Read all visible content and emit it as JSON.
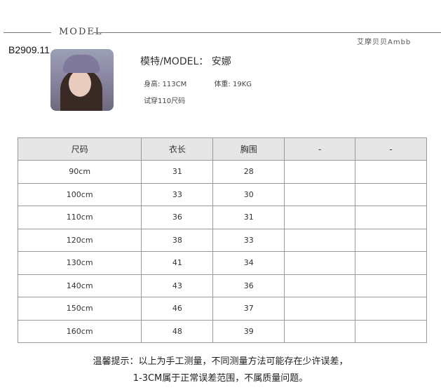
{
  "header": {
    "section_title": "MODEL",
    "brand": "艾摩贝贝Ambb",
    "product_code": "B2909.11"
  },
  "model": {
    "name_line": "模特/MODEL： 安娜",
    "height": "身高: 113CM",
    "weight": "体重: 19KG",
    "tried_size": "试穿110尺码"
  },
  "table": {
    "headers": [
      "尺码",
      "衣长",
      "胸围",
      "-",
      "-"
    ],
    "rows": [
      [
        "90cm",
        "31",
        "28",
        "",
        ""
      ],
      [
        "100cm",
        "33",
        "30",
        "",
        ""
      ],
      [
        "110cm",
        "36",
        "31",
        "",
        ""
      ],
      [
        "120cm",
        "38",
        "33",
        "",
        ""
      ],
      [
        "130cm",
        "41",
        "34",
        "",
        ""
      ],
      [
        "140cm",
        "43",
        "36",
        "",
        ""
      ],
      [
        "150cm",
        "46",
        "37",
        "",
        ""
      ],
      [
        "160cm",
        "48",
        "39",
        "",
        ""
      ]
    ]
  },
  "footer": {
    "line1": "温馨提示：以上为手工测量，不同测量方法可能存在少许误差，",
    "line2": "1-3CM属于正常误差范围，不属质量问题。"
  }
}
